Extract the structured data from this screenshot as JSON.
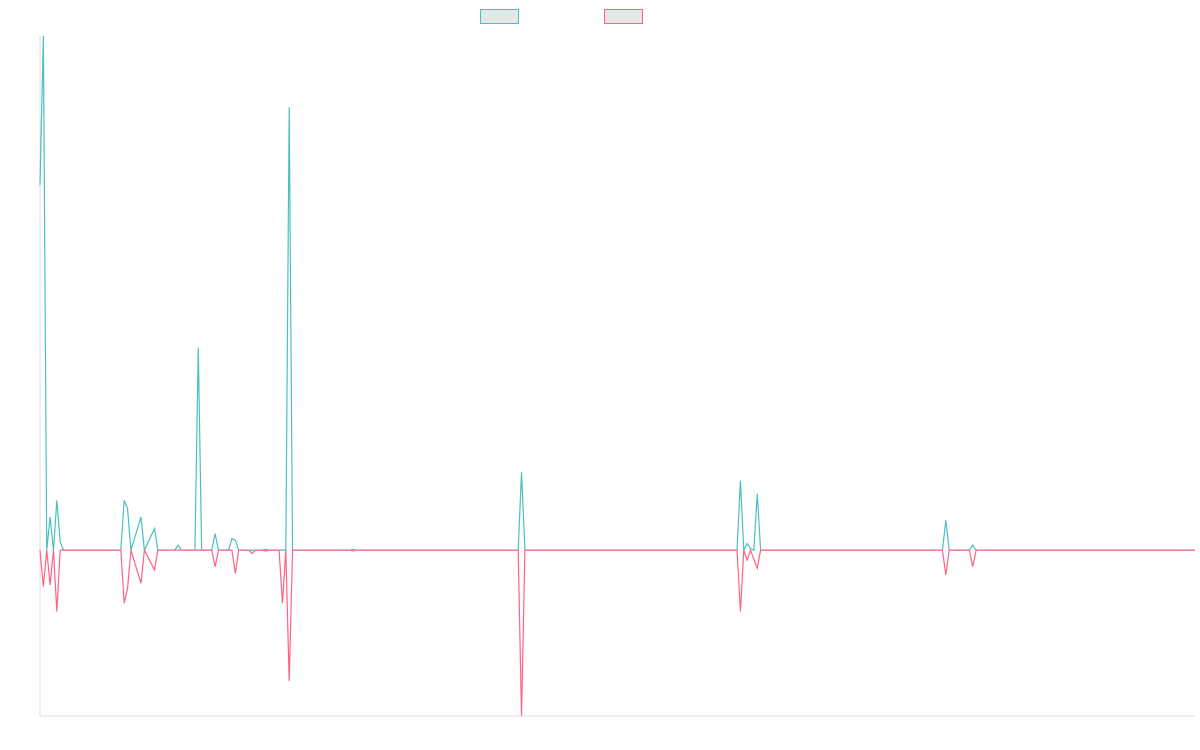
{
  "chart_data": {
    "type": "line",
    "title": "",
    "xlabel": "",
    "ylabel": "",
    "grid": false,
    "legend_position": "top-center",
    "x_count": 344,
    "ylim": [
      -10,
      31
    ],
    "series": [
      {
        "color": "#4bc0c0",
        "fill": "#e6e6e6",
        "points": [
          [
            0,
            22
          ],
          [
            1,
            31
          ],
          [
            2,
            0
          ],
          [
            3,
            2
          ],
          [
            4,
            0
          ],
          [
            5,
            3
          ],
          [
            6,
            0.5
          ],
          [
            7,
            0
          ],
          [
            24,
            0
          ],
          [
            25,
            3
          ],
          [
            26,
            2.5
          ],
          [
            27,
            0
          ],
          [
            30,
            2
          ],
          [
            31,
            0
          ],
          [
            34,
            1.3
          ],
          [
            35,
            0
          ],
          [
            40,
            0
          ],
          [
            41,
            0.3
          ],
          [
            42,
            0
          ],
          [
            46,
            0
          ],
          [
            47,
            12.2
          ],
          [
            48,
            0
          ],
          [
            51,
            0
          ],
          [
            52,
            1
          ],
          [
            53,
            0
          ],
          [
            56,
            0
          ],
          [
            57,
            0.7
          ],
          [
            58,
            0.6
          ],
          [
            59,
            0
          ],
          [
            66,
            0
          ],
          [
            67,
            0.05
          ],
          [
            68,
            0
          ],
          [
            73,
            0
          ],
          [
            74,
            26.7
          ],
          [
            75,
            0
          ],
          [
            92,
            0
          ],
          [
            93,
            0.05
          ],
          [
            94,
            0
          ],
          [
            142,
            0
          ],
          [
            143,
            4.7
          ],
          [
            144,
            0
          ],
          [
            207,
            0
          ],
          [
            208,
            4.2
          ],
          [
            209,
            0
          ],
          [
            210,
            0.4
          ],
          [
            211,
            0.1
          ],
          [
            212,
            0
          ],
          [
            213,
            3.4
          ],
          [
            214,
            0
          ],
          [
            268,
            0
          ],
          [
            269,
            1.8
          ],
          [
            270,
            0
          ],
          [
            276,
            0
          ],
          [
            277,
            0.3
          ],
          [
            278,
            0
          ],
          [
            343,
            0
          ]
        ]
      },
      {
        "color": "#ff6384",
        "fill": "#e6e6e6",
        "points": [
          [
            0,
            0
          ],
          [
            1,
            -2.2
          ],
          [
            2,
            0
          ],
          [
            3,
            -2.1
          ],
          [
            4,
            0
          ],
          [
            5,
            -3.7
          ],
          [
            6,
            0
          ],
          [
            24,
            0
          ],
          [
            25,
            -3.2
          ],
          [
            26,
            -2.3
          ],
          [
            27,
            0
          ],
          [
            30,
            -2
          ],
          [
            31,
            0
          ],
          [
            34,
            -1.2
          ],
          [
            35,
            0
          ],
          [
            51,
            0
          ],
          [
            52,
            -1
          ],
          [
            53,
            0
          ],
          [
            57,
            0
          ],
          [
            58,
            -1.4
          ],
          [
            59,
            0
          ],
          [
            62,
            0
          ],
          [
            63,
            -0.2
          ],
          [
            64,
            0
          ],
          [
            66,
            0
          ],
          [
            67,
            -0.05
          ],
          [
            68,
            0
          ],
          [
            71,
            0
          ],
          [
            72,
            -3.2
          ],
          [
            73,
            0
          ],
          [
            74,
            -7.9
          ],
          [
            75,
            0
          ],
          [
            92,
            0
          ],
          [
            93,
            -0.05
          ],
          [
            94,
            0
          ],
          [
            142,
            0
          ],
          [
            143,
            -10
          ],
          [
            144,
            0
          ],
          [
            207,
            0
          ],
          [
            208,
            -3.7
          ],
          [
            209,
            0
          ],
          [
            210,
            -0.6
          ],
          [
            211,
            0
          ],
          [
            213,
            -1.1
          ],
          [
            214,
            0
          ],
          [
            268,
            0
          ],
          [
            269,
            -1.5
          ],
          [
            270,
            0
          ],
          [
            276,
            0
          ],
          [
            277,
            -1
          ],
          [
            278,
            0
          ],
          [
            343,
            0
          ]
        ]
      }
    ]
  }
}
